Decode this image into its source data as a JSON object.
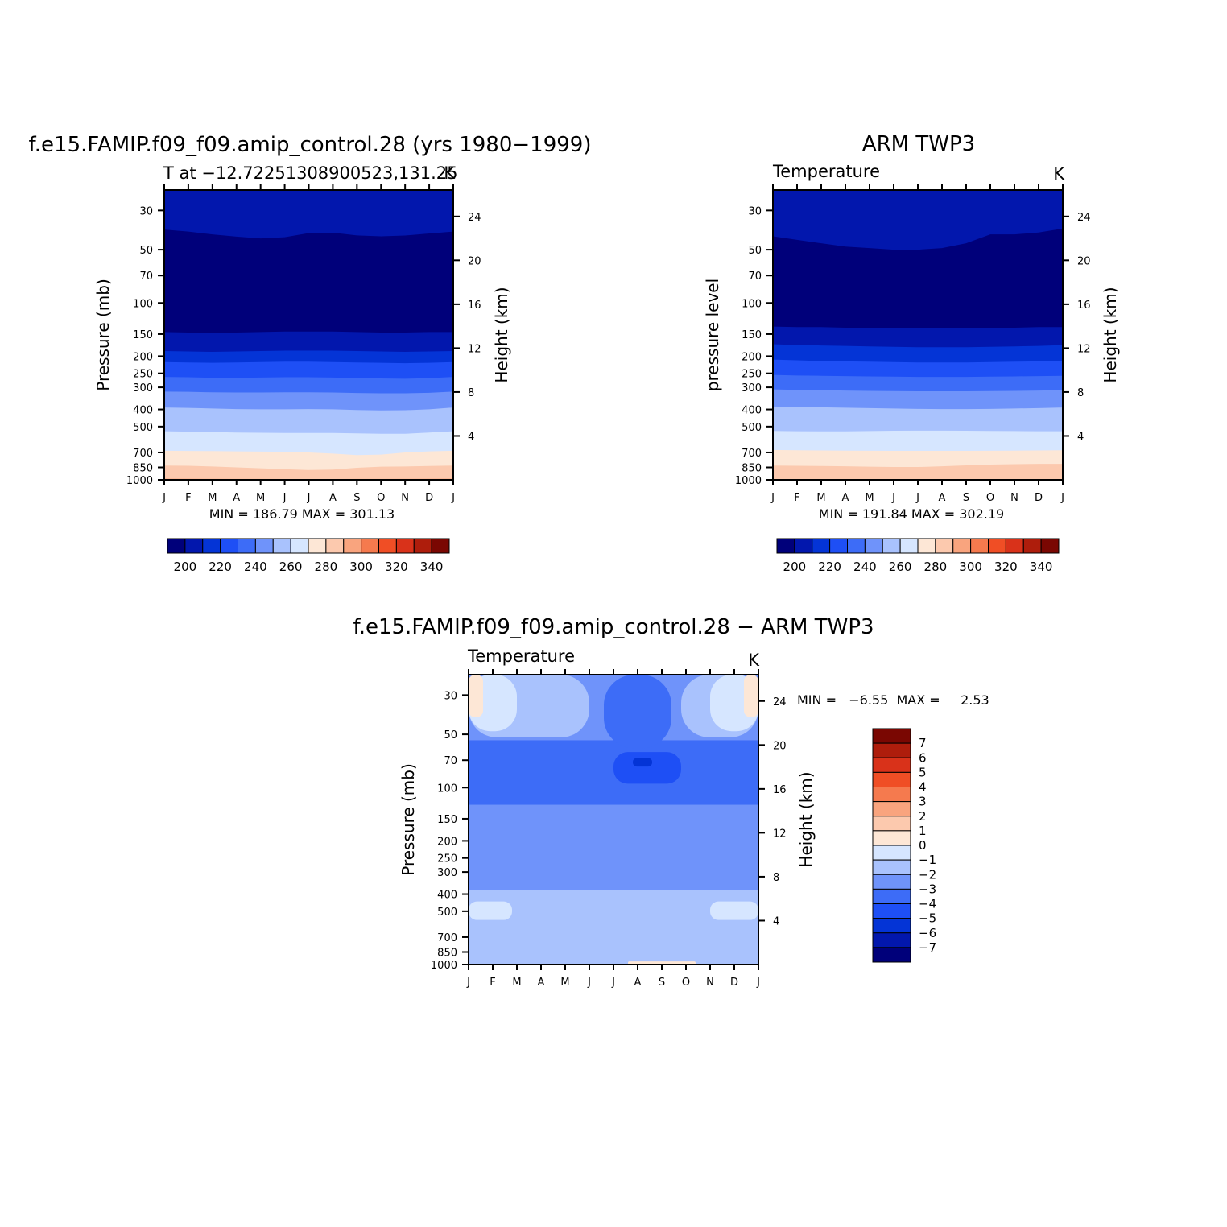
{
  "months": [
    "J",
    "F",
    "M",
    "A",
    "M",
    "J",
    "J",
    "A",
    "S",
    "O",
    "N",
    "D",
    "J"
  ],
  "pressure_ticks": [
    30,
    50,
    70,
    100,
    150,
    200,
    250,
    300,
    400,
    500,
    700,
    850,
    1000
  ],
  "height_ticks": [
    4,
    8,
    12,
    16,
    20,
    24
  ],
  "abs_levels": [
    200,
    210,
    220,
    230,
    240,
    250,
    260,
    270,
    280,
    290,
    300,
    310,
    320,
    330,
    340
  ],
  "abs_label_values": [
    200,
    220,
    240,
    260,
    280,
    300,
    320,
    340
  ],
  "abs_colors": [
    "#00007a",
    "#0217ad",
    "#0434d6",
    "#1e4ff5",
    "#3d6cf7",
    "#6f93fa",
    "#a9c2fd",
    "#d6e6ff",
    "#fde7d6",
    "#fcc9ae",
    "#f9a47e",
    "#f57a4e",
    "#f04e25",
    "#d9321a",
    "#ae1d0c",
    "#7a0702"
  ],
  "diff_levels": [
    -7,
    -6,
    -5,
    -4,
    -3,
    -2,
    -1,
    0,
    1,
    2,
    3,
    4,
    5,
    6,
    7
  ],
  "diff_colors": [
    "#00007a",
    "#0217ad",
    "#0434d6",
    "#1e4ff5",
    "#3d6cf7",
    "#6f93fa",
    "#a9c2fd",
    "#d6e6ff",
    "#fde7d6",
    "#fcc9ae",
    "#f9a47e",
    "#f57a4e",
    "#f04e25",
    "#d9321a",
    "#ae1d0c",
    "#7a0702"
  ],
  "panels": {
    "model": {
      "title": "f.e15.FAMIP.f09_f09.amip_control.28 (yrs 1980−1999)",
      "subtitle": "T at −12.72251308900523,131.25",
      "units": "K",
      "ylabel": "Pressure (mb)",
      "ylabel_right": "Height (km)",
      "minmax": "MIN =  186.79  MAX =  301.13"
    },
    "obs": {
      "title": "ARM TWP3",
      "subtitle": "Temperature",
      "units": "K",
      "ylabel": "pressure level",
      "ylabel_right": "Height (km)",
      "minmax": "MIN =  191.84  MAX =  302.19"
    },
    "diff": {
      "title": "f.e15.FAMIP.f09_f09.amip_control.28 − ARM TWP3",
      "subtitle": "Temperature",
      "units": "K",
      "ylabel": "Pressure (mb)",
      "ylabel_right": "Height (km)",
      "minmax": "MIN =   −6.55  MAX =     2.53"
    }
  },
  "chart_data": [
    {
      "type": "heatmap",
      "title": "f.e15.FAMIP.f09_f09.amip_control.28 (yrs 1980−1999)",
      "subtitle": "T at −12.72251308900523,131.25",
      "units": "K",
      "xlabel": "",
      "ylabel": "Pressure (mb)",
      "ylabel_right": "Height (km)",
      "x": [
        "J",
        "F",
        "M",
        "A",
        "M",
        "J",
        "J",
        "A",
        "S",
        "O",
        "N",
        "D",
        "J"
      ],
      "y_scale": "log",
      "y_reversed": true,
      "ylim": [
        23,
        1000
      ],
      "min": 186.79,
      "max": 301.13,
      "contour_interval": 10,
      "boundaries": [
        {
          "level": 200,
          "p": [
            146,
            147,
            148,
            147,
            146,
            145,
            145,
            145,
            146,
            147,
            147,
            146,
            146
          ]
        },
        {
          "level": 210,
          "p": [
            187,
            188,
            189,
            188,
            187,
            186,
            186,
            186,
            187,
            188,
            189,
            188,
            187
          ]
        },
        {
          "level": 220,
          "p": [
            216,
            217,
            218,
            217,
            216,
            215,
            215,
            216,
            217,
            218,
            219,
            218,
            216
          ]
        },
        {
          "level": 230,
          "p": [
            262,
            263,
            265,
            265,
            264,
            263,
            263,
            264,
            266,
            267,
            268,
            266,
            262
          ]
        },
        {
          "level": 240,
          "p": [
            317,
            318,
            320,
            321,
            321,
            320,
            320,
            321,
            323,
            324,
            324,
            322,
            317
          ]
        },
        {
          "level": 250,
          "p": [
            390,
            392,
            395,
            398,
            399,
            399,
            398,
            399,
            403,
            405,
            404,
            399,
            390
          ]
        },
        {
          "level": 260,
          "p": [
            531,
            534,
            537,
            540,
            542,
            543,
            543,
            543,
            546,
            549,
            549,
            540,
            531
          ]
        },
        {
          "level": 270,
          "p": [
            685,
            687,
            688,
            690,
            692,
            694,
            700,
            710,
            725,
            720,
            700,
            690,
            685
          ]
        },
        {
          "level": 280,
          "p": [
            830,
            833,
            840,
            850,
            860,
            870,
            880,
            875,
            855,
            842,
            840,
            835,
            830
          ]
        },
        {
          "level": 290,
          "p": [
            985,
            986,
            987,
            988,
            988,
            989,
            989,
            989,
            988,
            988,
            987,
            986,
            985
          ]
        },
        {
          "level": 190,
          "p": [
            58.5,
            59.2,
            60.0,
            61.0,
            62.0,
            62.7,
            62.9,
            62.7,
            62.0,
            61.0,
            60.0,
            59.2,
            58.5
          ]
        },
        {
          "level": 200,
          "p": [
            38.5,
            39.5,
            41.0,
            42.2,
            43.2,
            42.5,
            40.3,
            40.1,
            41.5,
            42.0,
            41.6,
            40.5,
            39.5
          ]
        },
        {
          "level": 210,
          "p": [
            23.0,
            23.0,
            23.0,
            23.0,
            23.0,
            23.0,
            23.0,
            23.0,
            23.0,
            23.0,
            23.0,
            23.0,
            23.0
          ]
        }
      ]
    },
    {
      "type": "heatmap",
      "title": "ARM TWP3",
      "subtitle": "Temperature",
      "units": "K",
      "xlabel": "",
      "ylabel": "pressure level",
      "ylabel_right": "Height (km)",
      "x": [
        "J",
        "F",
        "M",
        "A",
        "M",
        "J",
        "J",
        "A",
        "S",
        "O",
        "N",
        "D",
        "J"
      ],
      "y_scale": "log",
      "y_reversed": true,
      "ylim": [
        23,
        1000
      ],
      "min": 191.84,
      "max": 302.19,
      "contour_interval": 10,
      "boundaries": [
        {
          "level": 200,
          "p": [
            136,
            137,
            137,
            138,
            138,
            138,
            138,
            138,
            138,
            138,
            138,
            137,
            137
          ]
        },
        {
          "level": 210,
          "p": [
            171,
            173,
            174,
            175,
            176,
            177,
            178,
            178,
            178,
            177,
            176,
            175,
            173
          ]
        },
        {
          "level": 220,
          "p": [
            209,
            211,
            213,
            214,
            215,
            216,
            217,
            217,
            217,
            216,
            215,
            214,
            212
          ]
        },
        {
          "level": 230,
          "p": [
            255,
            257,
            258,
            259,
            260,
            261,
            262,
            262,
            262,
            261,
            260,
            259,
            258
          ]
        },
        {
          "level": 240,
          "p": [
            308,
            310,
            311,
            313,
            314,
            315,
            316,
            316,
            316,
            315,
            314,
            313,
            311
          ]
        },
        {
          "level": 250,
          "p": [
            385,
            387,
            389,
            391,
            393,
            395,
            397,
            398,
            398,
            397,
            395,
            393,
            390
          ]
        },
        {
          "level": 260,
          "p": [
            529,
            531,
            532,
            532,
            530,
            528,
            527,
            527,
            528,
            529,
            530,
            531,
            531
          ]
        },
        {
          "level": 270,
          "p": [
            678,
            680,
            682,
            684,
            685,
            686,
            686,
            686,
            686,
            685,
            684,
            682,
            680
          ]
        },
        {
          "level": 280,
          "p": [
            830,
            833,
            835,
            838,
            842,
            846,
            846,
            838,
            828,
            820,
            815,
            812,
            812
          ]
        },
        {
          "level": 190,
          "p": [
            61,
            59,
            60,
            61,
            63,
            65,
            69,
            72,
            70,
            65,
            63,
            60,
            58
          ]
        },
        {
          "level": 200,
          "p": [
            42,
            44,
            46,
            48,
            49,
            50,
            50,
            49,
            46,
            41,
            41,
            40,
            38
          ]
        },
        {
          "level": 210,
          "p": [
            23.0,
            23.0,
            23.0,
            23.0,
            23.0,
            23.0,
            23.0,
            23.0,
            23.0,
            23.0,
            23.0,
            23.0,
            23.0
          ]
        }
      ]
    },
    {
      "type": "heatmap",
      "title": "f.e15.FAMIP.f09_f09.amip_control.28 − ARM TWP3",
      "subtitle": "Temperature",
      "units": "K",
      "xlabel": "",
      "ylabel": "Pressure (mb)",
      "ylabel_right": "Height (km)",
      "x": [
        "J",
        "F",
        "M",
        "A",
        "M",
        "J",
        "J",
        "A",
        "S",
        "O",
        "N",
        "D",
        "J"
      ],
      "y_scale": "log",
      "y_reversed": true,
      "ylim": [
        23,
        1000
      ],
      "min": -6.55,
      "max": 2.53,
      "contour_interval": 1,
      "background_level": -3,
      "regions": [
        {
          "level": -2,
          "p_top": 380,
          "p_bot": 1000
        },
        {
          "level": -1,
          "p_top": 440,
          "p_bot": 560,
          "months": [
            0,
            1.8
          ]
        },
        {
          "level": -1,
          "p_top": 440,
          "p_bot": 560,
          "months": [
            10,
            12
          ]
        },
        {
          "level": -4,
          "p_top": 54,
          "p_bot": 125
        },
        {
          "level": -4,
          "p_top": 23,
          "p_bot": 60,
          "months": [
            5.6,
            8.4
          ]
        },
        {
          "level": -5,
          "p_top": 63,
          "p_bot": 95,
          "months": [
            6.0,
            8.8
          ]
        },
        {
          "level": -6,
          "p_top": 68,
          "p_bot": 76,
          "months": [
            6.8,
            7.6
          ]
        },
        {
          "level": -2,
          "p_top": 23,
          "p_bot": 52,
          "months": [
            0,
            5.0
          ]
        },
        {
          "level": -2,
          "p_top": 23,
          "p_bot": 52,
          "months": [
            8.8,
            12
          ]
        },
        {
          "level": -1,
          "p_top": 23,
          "p_bot": 48,
          "months": [
            0,
            2.0
          ]
        },
        {
          "level": -1,
          "p_top": 23,
          "p_bot": 48,
          "months": [
            10.0,
            12
          ]
        },
        {
          "level": 0,
          "p_top": 23,
          "p_bot": 40,
          "months": [
            0,
            0.6
          ]
        },
        {
          "level": 0,
          "p_top": 23,
          "p_bot": 40,
          "months": [
            11.4,
            12
          ]
        },
        {
          "level": 0,
          "p_top": 960,
          "p_bot": 1000,
          "months": [
            6.6,
            9.4
          ]
        }
      ]
    }
  ]
}
